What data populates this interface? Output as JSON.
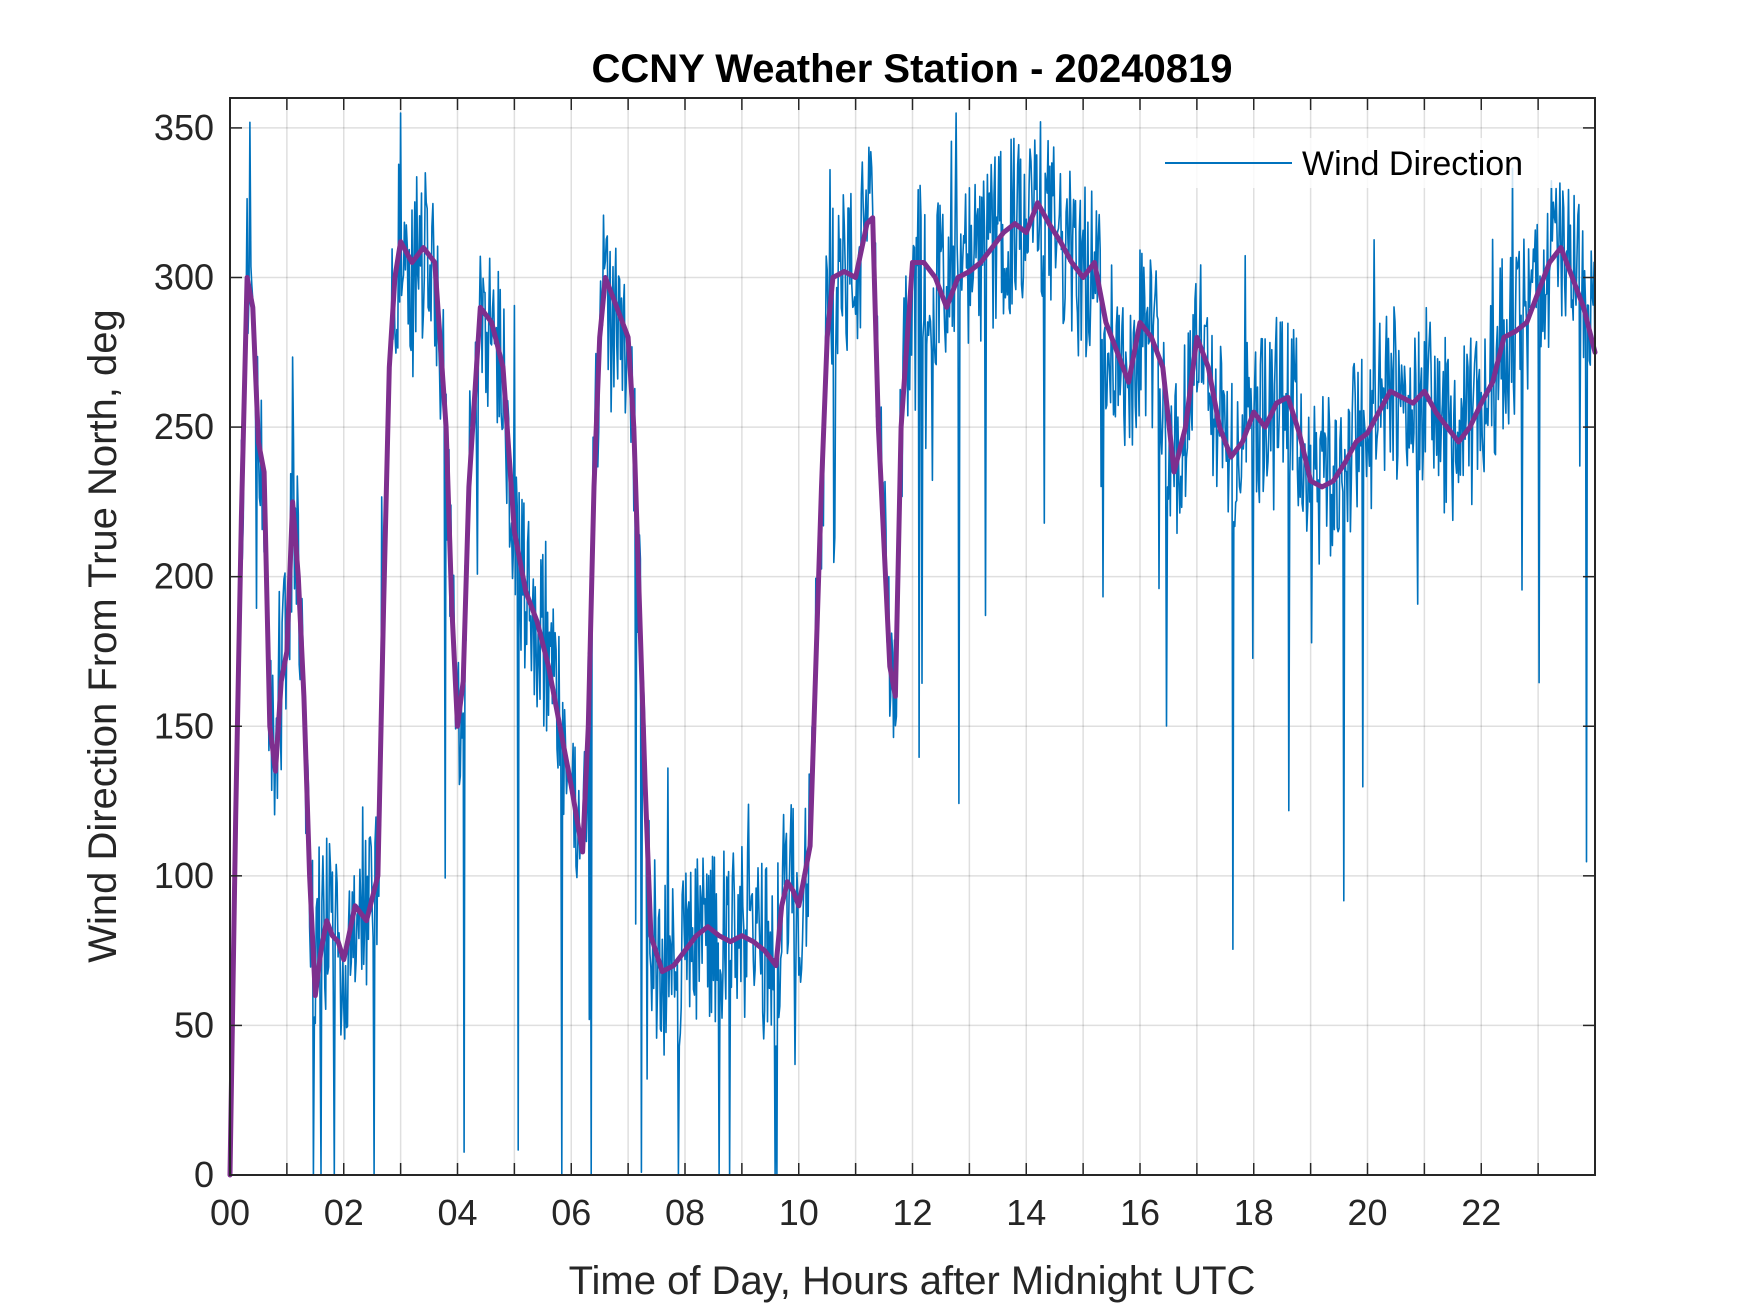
{
  "chart_data": {
    "type": "line",
    "title": "CCNY Weather Station - 20240819",
    "xlabel": "Time of Day, Hours after Midnight UTC",
    "ylabel": "Wind Direction From True North, deg",
    "xlim": [
      0,
      24
    ],
    "ylim": [
      0,
      360
    ],
    "xticks": [
      0,
      2,
      4,
      6,
      8,
      10,
      12,
      14,
      16,
      18,
      20,
      22
    ],
    "xtick_labels": [
      "00",
      "02",
      "04",
      "06",
      "08",
      "10",
      "12",
      "14",
      "16",
      "18",
      "20",
      "22"
    ],
    "yticks": [
      0,
      50,
      100,
      150,
      200,
      250,
      300,
      350
    ],
    "ytick_labels": [
      "0",
      "50",
      "100",
      "150",
      "200",
      "250",
      "300",
      "350"
    ],
    "grid": true,
    "legend": {
      "placement": "top-right",
      "entries": [
        "Wind Direction"
      ]
    },
    "series": [
      {
        "name": "Wind Direction",
        "color": "#0072bd",
        "style": "raw",
        "anchors": {
          "x": [
            0,
            0.1,
            0.2,
            0.3,
            0.4,
            0.5,
            0.6,
            0.7,
            0.8,
            0.9,
            1.0,
            1.1,
            1.2,
            1.3,
            1.4,
            1.5,
            1.6,
            1.7,
            1.8,
            1.9,
            2.0,
            2.2,
            2.4,
            2.6,
            2.7,
            2.8,
            2.9,
            3.0,
            3.2,
            3.4,
            3.6,
            3.8,
            3.9,
            4.0,
            4.1,
            4.2,
            4.4,
            4.6,
            4.8,
            5.0,
            5.2,
            5.4,
            5.6,
            5.8,
            6.0,
            6.2,
            6.3,
            6.4,
            6.5,
            6.6,
            6.8,
            7.0,
            7.1,
            7.2,
            7.3,
            7.4,
            7.6,
            7.8,
            8.0,
            8.2,
            8.4,
            8.6,
            8.8,
            9.0,
            9.2,
            9.4,
            9.6,
            9.7,
            9.8,
            9.9,
            10.0,
            10.2,
            10.4,
            10.5,
            10.6,
            10.8,
            11.0,
            11.2,
            11.3,
            11.4,
            11.5,
            11.6,
            11.7,
            11.8,
            12.0,
            12.2,
            12.4,
            12.6,
            12.8,
            13.0,
            13.2,
            13.4,
            13.6,
            13.8,
            14.0,
            14.2,
            14.4,
            14.6,
            14.8,
            15.0,
            15.2,
            15.4,
            15.6,
            15.8,
            16.0,
            16.2,
            16.4,
            16.6,
            16.8,
            17.0,
            17.2,
            17.4,
            17.6,
            17.8,
            18.0,
            18.2,
            18.4,
            18.6,
            18.8,
            19.0,
            19.2,
            19.4,
            19.6,
            19.8,
            20.0,
            20.2,
            20.4,
            20.6,
            20.8,
            21.0,
            21.2,
            21.4,
            21.6,
            21.8,
            22.0,
            22.2,
            22.4,
            22.6,
            22.8,
            23.0,
            23.2,
            23.4,
            23.6,
            23.8,
            24.0
          ],
          "y": [
            0,
            120,
            220,
            300,
            290,
            245,
            235,
            150,
            135,
            165,
            175,
            225,
            200,
            160,
            100,
            60,
            75,
            85,
            80,
            78,
            72,
            90,
            85,
            100,
            190,
            270,
            300,
            312,
            305,
            310,
            305,
            250,
            190,
            150,
            165,
            230,
            290,
            285,
            270,
            215,
            195,
            185,
            170,
            150,
            130,
            108,
            150,
            230,
            280,
            300,
            290,
            280,
            250,
            190,
            130,
            80,
            68,
            70,
            75,
            80,
            83,
            80,
            78,
            80,
            78,
            75,
            70,
            90,
            98,
            95,
            90,
            110,
            230,
            280,
            300,
            302,
            300,
            318,
            320,
            250,
            210,
            170,
            160,
            250,
            305,
            305,
            300,
            290,
            300,
            302,
            305,
            310,
            315,
            318,
            315,
            325,
            318,
            312,
            305,
            300,
            305,
            285,
            275,
            265,
            285,
            280,
            270,
            235,
            250,
            280,
            270,
            250,
            240,
            245,
            255,
            250,
            258,
            260,
            248,
            232,
            230,
            232,
            238,
            245,
            248,
            255,
            262,
            260,
            258,
            262,
            255,
            250,
            245,
            250,
            258,
            265,
            280,
            282,
            285,
            295,
            305,
            310,
            300,
            290,
            275
          ],
          "noise": 30
        }
      },
      {
        "name": "",
        "color": "#7e2f8e",
        "style": "smoothed",
        "x": [
          0,
          0.1,
          0.2,
          0.3,
          0.4,
          0.5,
          0.6,
          0.7,
          0.8,
          0.9,
          1.0,
          1.1,
          1.2,
          1.3,
          1.4,
          1.5,
          1.6,
          1.7,
          1.8,
          1.9,
          2.0,
          2.2,
          2.4,
          2.6,
          2.7,
          2.8,
          2.9,
          3.0,
          3.2,
          3.4,
          3.6,
          3.8,
          3.9,
          4.0,
          4.1,
          4.2,
          4.4,
          4.6,
          4.8,
          5.0,
          5.2,
          5.4,
          5.6,
          5.8,
          6.0,
          6.2,
          6.3,
          6.4,
          6.5,
          6.6,
          6.8,
          7.0,
          7.1,
          7.2,
          7.3,
          7.4,
          7.6,
          7.8,
          8.0,
          8.2,
          8.4,
          8.6,
          8.8,
          9.0,
          9.2,
          9.4,
          9.6,
          9.7,
          9.8,
          9.9,
          10.0,
          10.2,
          10.4,
          10.5,
          10.6,
          10.8,
          11.0,
          11.2,
          11.3,
          11.4,
          11.5,
          11.6,
          11.7,
          11.8,
          12.0,
          12.2,
          12.4,
          12.6,
          12.8,
          13.0,
          13.2,
          13.4,
          13.6,
          13.8,
          14.0,
          14.2,
          14.4,
          14.6,
          14.8,
          15.0,
          15.2,
          15.4,
          15.6,
          15.8,
          16.0,
          16.2,
          16.4,
          16.6,
          16.8,
          17.0,
          17.2,
          17.4,
          17.6,
          17.8,
          18.0,
          18.2,
          18.4,
          18.6,
          18.8,
          19.0,
          19.2,
          19.4,
          19.6,
          19.8,
          20.0,
          20.2,
          20.4,
          20.6,
          20.8,
          21.0,
          21.2,
          21.4,
          21.6,
          21.8,
          22.0,
          22.2,
          22.4,
          22.6,
          22.8,
          23.0,
          23.2,
          23.4,
          23.6,
          23.8,
          24.0
        ],
        "values": [
          0,
          120,
          220,
          300,
          290,
          245,
          235,
          150,
          135,
          165,
          175,
          225,
          200,
          160,
          100,
          60,
          75,
          85,
          80,
          78,
          72,
          90,
          85,
          100,
          190,
          270,
          300,
          312,
          305,
          310,
          305,
          250,
          190,
          150,
          165,
          230,
          290,
          285,
          270,
          215,
          195,
          185,
          170,
          150,
          130,
          108,
          150,
          230,
          280,
          300,
          290,
          280,
          250,
          190,
          130,
          80,
          68,
          70,
          75,
          80,
          83,
          80,
          78,
          80,
          78,
          75,
          70,
          90,
          98,
          95,
          90,
          110,
          230,
          280,
          300,
          302,
          300,
          318,
          320,
          250,
          210,
          170,
          160,
          250,
          305,
          305,
          300,
          290,
          300,
          302,
          305,
          310,
          315,
          318,
          315,
          325,
          318,
          312,
          305,
          300,
          305,
          285,
          275,
          265,
          285,
          280,
          270,
          235,
          250,
          280,
          270,
          250,
          240,
          245,
          255,
          250,
          258,
          260,
          248,
          232,
          230,
          232,
          238,
          245,
          248,
          255,
          262,
          260,
          258,
          262,
          255,
          250,
          245,
          250,
          258,
          265,
          280,
          282,
          285,
          295,
          305,
          310,
          300,
          290,
          275
        ]
      }
    ]
  }
}
